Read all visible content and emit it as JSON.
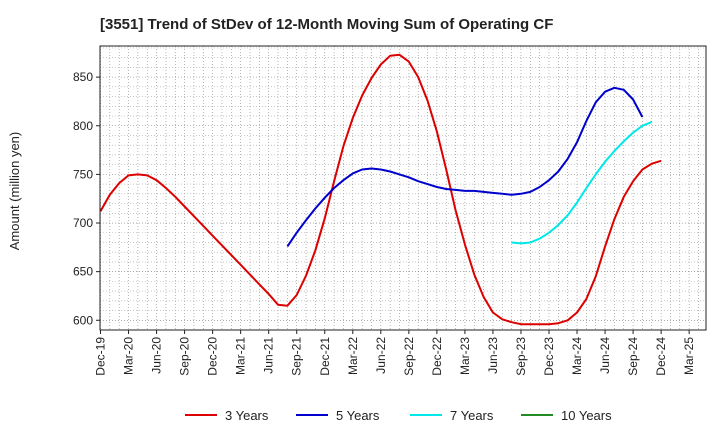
{
  "chart_data": {
    "type": "line",
    "title": "[3551]  Trend of StDev of 12-Month Moving Sum of Operating CF",
    "xlabel": "",
    "ylabel": "Amount (million yen)",
    "ylim": [
      590,
      882
    ],
    "yticks": [
      600,
      650,
      700,
      750,
      800,
      850
    ],
    "x_tick_labels": [
      "Dec-19",
      "Mar-20",
      "Jun-20",
      "Sep-20",
      "Dec-20",
      "Mar-21",
      "Jun-21",
      "Sep-21",
      "Dec-21",
      "Mar-22",
      "Jun-22",
      "Sep-22",
      "Dec-22",
      "Mar-23",
      "Jun-23",
      "Sep-23",
      "Dec-23",
      "Mar-24",
      "Jun-24",
      "Sep-24",
      "Dec-24",
      "Mar-25"
    ],
    "x_month_range": [
      0,
      64
    ],
    "grid": true,
    "legend_position": "bottom",
    "series": [
      {
        "name": "3 Years",
        "color": "#dd0000",
        "start_month": 0,
        "values": [
          712,
          729,
          741,
          749,
          750,
          749,
          744,
          736,
          727,
          717,
          707,
          697,
          687,
          677,
          667,
          657,
          647,
          637,
          627,
          616,
          615,
          626,
          646,
          672,
          705,
          743,
          779,
          808,
          831,
          849,
          863,
          872,
          873,
          866,
          850,
          826,
          794,
          755,
          713,
          678,
          647,
          624,
          608,
          601,
          598,
          596,
          596,
          596,
          596,
          597,
          600,
          608,
          622,
          645,
          676,
          704,
          727,
          743,
          755,
          761,
          764
        ]
      },
      {
        "name": "5 Years",
        "color": "#0000cc",
        "start_month": 20,
        "values": [
          676,
          690,
          703,
          715,
          726,
          736,
          744,
          751,
          755,
          756,
          755,
          753,
          750,
          747,
          743,
          740,
          737,
          735,
          734,
          733,
          733,
          732,
          731,
          730,
          729,
          730,
          732,
          737,
          744,
          753,
          766,
          783,
          805,
          824,
          835,
          839,
          837,
          827,
          809
        ]
      },
      {
        "name": "7 Years",
        "color": "#00e8e8",
        "start_month": 44,
        "values": [
          680,
          679,
          680,
          684,
          690,
          698,
          708,
          721,
          736,
          750,
          763,
          774,
          784,
          793,
          800,
          804
        ]
      },
      {
        "name": "10 Years",
        "color": "#228b22",
        "start_month": 0,
        "values": []
      }
    ]
  }
}
